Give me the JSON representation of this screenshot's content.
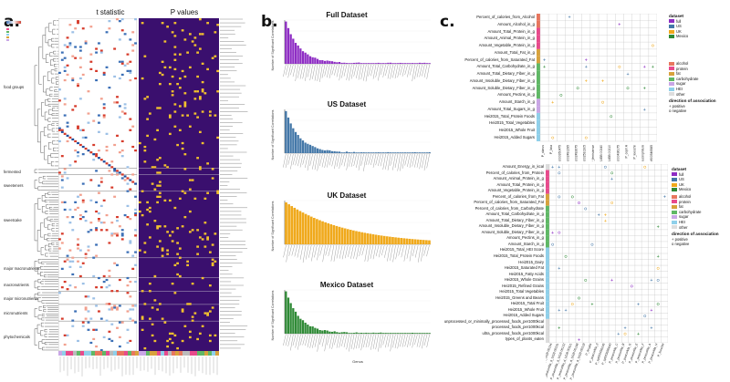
{
  "panels": {
    "a": {
      "letter": "a.",
      "titles": [
        "t statistic",
        "P values"
      ],
      "groups": [
        "food groups",
        "fermented",
        "sweeteners",
        "sweetcake",
        "major macronutrients",
        "macronutrients",
        "major micronutrients",
        "micronutrients",
        "phytochemicals"
      ],
      "color_scale": {
        "low": "#3b6fb6",
        "mid": "#ffffff",
        "high": "#d63a2a"
      },
      "pvalue_colors": {
        "bg": "#3a0f6e",
        "sig": "#f2c12e"
      }
    },
    "b": {
      "letter": "b.",
      "charts": [
        {
          "title": "Full Dataset",
          "color": "#8e2dc4"
        },
        {
          "title": "US Dataset",
          "color": "#4377a8"
        },
        {
          "title": "UK Dataset",
          "color": "#f0a91c"
        },
        {
          "title": "Mexico Dataset",
          "color": "#2f8a36"
        }
      ],
      "ylabel": "Number of Significant Correlations",
      "xlabel": "Genus"
    },
    "c": {
      "letter": "c.",
      "top": {
        "rows": [
          "Percent_of_calories_from_Alcohol",
          "Amount_Alcohol_in_g",
          "Amount_Total_Protein_in_g",
          "Amount_Animal_Protein_in_g",
          "Amount_Vegetable_Protein_in_g",
          "Amount_Total_Fat_in_g",
          "Percent_of_calories_from_Saturated_Fat",
          "Amount_Total_Carbohydrate_in_g",
          "Amount_Total_Dietary_Fiber_in_g",
          "Amount_Insoluble_Dietary_Fiber_in_g",
          "Amount_Soluble_Dietary_Fiber_in_g",
          "Amount_Pectins_in_g",
          "Amount_Starch_in_g",
          "Amount_Total_Sugars_in_g",
          "Hei2015_Total_Protein Foods",
          "Hei2015_Total_Vegetables",
          "Hei2015_Whole Fruit",
          "Hei2015_Added Sugars"
        ],
        "cols": [
          "P_clarus",
          "P_lixia",
          "P_sp000350475",
          "P_sp002491295",
          "P_sp002492675",
          "P_sp002531305",
          "P_ferrisiense",
          "P_MAG_UGB 00240",
          "P_copri_UGB 00210",
          "P_sp000436175",
          "P_copri A",
          "P_loeschii",
          "P_muciniphilum",
          "P_sp900546585"
        ]
      },
      "bottom": {
        "rows": [
          "Amount_Energy_in_kcal",
          "Percent_of_calories_from_Protein",
          "Amount_Animal_Protein_in_g",
          "Amount_Total_Protein_in_g",
          "Amount_Vegetable_Protein_in_g",
          "Percent_of_calories_from_Fat",
          "Percent_of_calories_from_Saturated_Fat",
          "Percent_of_calories_from_Carbohydrate",
          "Amount_Total_Carbohydrate_in_g",
          "Amount_Total_Dietary_Fiber_in_g",
          "Amount_Insoluble_Dietary_Fiber_in_g",
          "Amount_Soluble_Dietary_Fiber_in_g",
          "Amount_Pectins_in_g",
          "Amount_Starch_in_g",
          "Hei2015_Total_HEI Score",
          "Hei2015_Total_Protein Foods",
          "Hei2015_Dairy",
          "Hei2015_Saturated Fat",
          "Hei2015_Fatty Acids",
          "Hei2015_Whole Grains",
          "Hei2015_Refined Grains",
          "Hei2015_Total Vegetables",
          "Hei2015_Greens and Beans",
          "Hei2015_Total Fruit",
          "Hei2015_Whole Fruit",
          "Hei2015_Added Sugars",
          "unprocessed_or_minimally_processed_foods_per1000kcal",
          "processed_foods_per1000kcal",
          "ultra_processed_foods_per1000kcal",
          "types_of_plants_eaten"
        ],
        "cols": [
          "P_peacorkla_d_UGB 00154",
          "P_peacorkla_d_UGB 00231",
          "P_peacorkla_d_UGB 00122",
          "P_peacorkla_d_UGB 00311",
          "P_peacorkla_d_UGB 00168",
          "P_peacorkla_d_UGB 00218",
          "P_fecalis",
          "P_peacorkla_d",
          "P_sp000436245",
          "P_sp003536640",
          "P_peacorkla_C",
          "P_peacorkla_B",
          "P_peacorkla_G",
          "P_peacorkla_E",
          "P_peacorkla_F",
          "P_peacorkla_A",
          "P_peacorkla_H",
          "P_loeschii"
        ]
      },
      "legend": {
        "dataset_title": "dataset",
        "datasets": [
          {
            "name": "full",
            "color": "#8e2dc4"
          },
          {
            "name": "US",
            "color": "#4377a8"
          },
          {
            "name": "UK",
            "color": "#f0a91c"
          },
          {
            "name": "Mexico",
            "color": "#2f8a36"
          }
        ],
        "categories": [
          {
            "name": "alcohol",
            "color": "#e8765e"
          },
          {
            "name": "protein",
            "color": "#e84a8c"
          },
          {
            "name": "fat",
            "color": "#d8a23c"
          },
          {
            "name": "carbohydrate",
            "color": "#5fb865"
          },
          {
            "name": "sugar",
            "color": "#c9a6e6"
          },
          {
            "name": "HEI",
            "color": "#8fd0ea"
          },
          {
            "name": "other",
            "color": "#dddddd"
          }
        ],
        "direction_title": "direction of association",
        "directions": [
          "+ positive",
          "o negative"
        ]
      }
    }
  }
}
